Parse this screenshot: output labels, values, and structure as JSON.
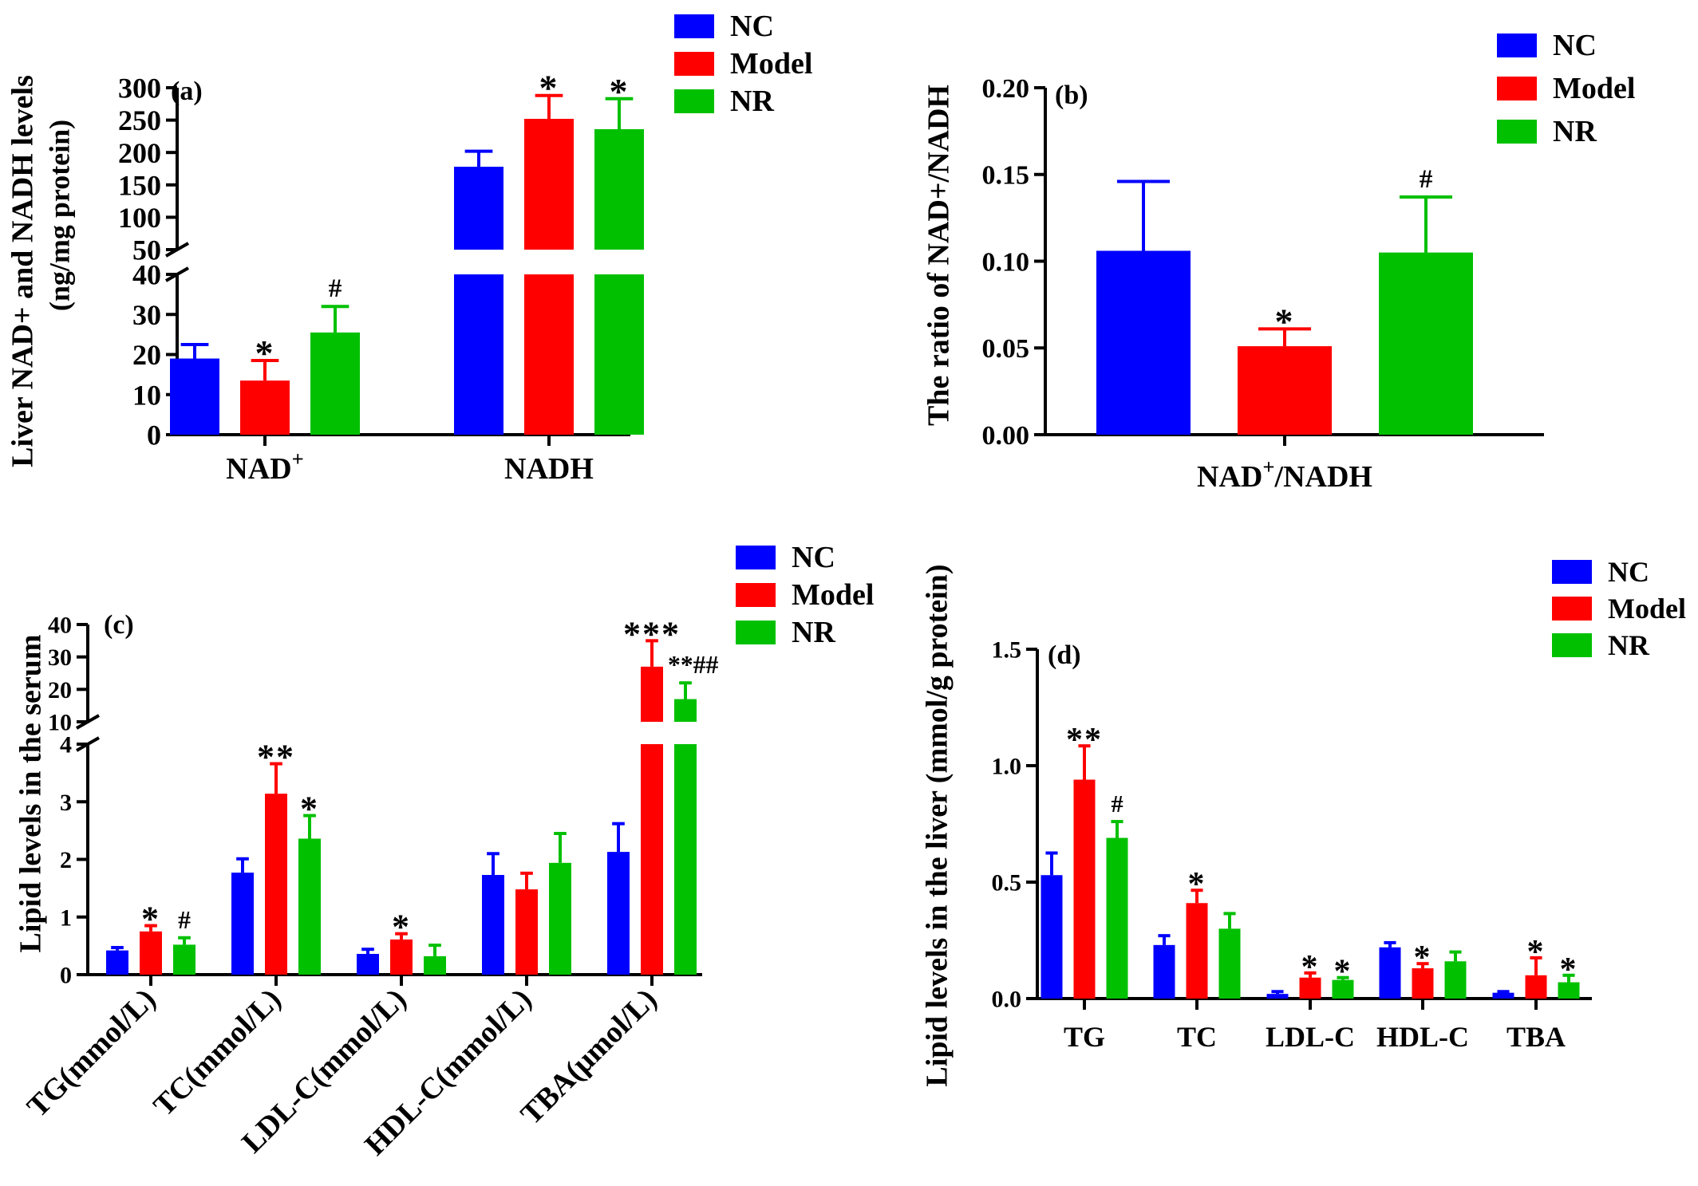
{
  "colors": {
    "NC": "#0000ff",
    "Model": "#ff0000",
    "NR": "#00c000"
  },
  "chart_data": [
    {
      "id": "a",
      "panel_label": "(a)",
      "type": "bar",
      "ylabel": "Liver NAD+ and NADH levels",
      "ylabel2": "(ng/mg protein)",
      "categories": [
        {
          "base": "NAD",
          "sup": "+"
        },
        {
          "base": "NADH",
          "sup": ""
        }
      ],
      "legend": [
        "NC",
        "Model",
        "NR"
      ],
      "axis_break": true,
      "ylim_lower": [
        0,
        40
      ],
      "ylim_upper": [
        50,
        300
      ],
      "yticks_lower": [
        "0",
        "10",
        "20",
        "30",
        "40"
      ],
      "yticks_upper": [
        "50",
        "100",
        "150",
        "200",
        "250",
        "300"
      ],
      "series": [
        {
          "name": "NC",
          "values": [
            19,
            178
          ],
          "errors": [
            3.5,
            24
          ]
        },
        {
          "name": "Model",
          "values": [
            13.5,
            252
          ],
          "errors": [
            5,
            36
          ]
        },
        {
          "name": "NR",
          "values": [
            25.5,
            236
          ],
          "errors": [
            6.5,
            47
          ]
        }
      ],
      "annotations": [
        [
          "",
          ""
        ],
        [
          "*",
          "*"
        ],
        [
          "#",
          "*"
        ]
      ]
    },
    {
      "id": "b",
      "panel_label": "(b)",
      "type": "bar",
      "ylabel": "The ratio of NAD+/NADH",
      "categories": [
        {
          "base": "NAD",
          "sup": "+",
          "after": "/NADH"
        }
      ],
      "legend": [
        "NC",
        "Model",
        "NR"
      ],
      "ylim": [
        0,
        0.2
      ],
      "yticks": [
        "0.00",
        "0.05",
        "0.10",
        "0.15",
        "0.20"
      ],
      "series": [
        {
          "name": "NC",
          "values": [
            0.106
          ],
          "errors": [
            0.04
          ]
        },
        {
          "name": "Model",
          "values": [
            0.051
          ],
          "errors": [
            0.01
          ]
        },
        {
          "name": "NR",
          "values": [
            0.105
          ],
          "errors": [
            0.032
          ]
        }
      ],
      "annotations": [
        [
          ""
        ],
        [
          "*"
        ],
        [
          "#"
        ]
      ]
    },
    {
      "id": "c",
      "panel_label": "(c)",
      "type": "bar",
      "ylabel": "Lipid levels in the serum",
      "categories": [
        "TG(mmol/L)",
        "TC(mmol/L)",
        "LDL-C(mmol/L)",
        "HDL-C(mmol/L)",
        "TBA(μmol/L)"
      ],
      "legend": [
        "NC",
        "Model",
        "NR"
      ],
      "axis_break": true,
      "ylim_lower": [
        0,
        4
      ],
      "ylim_upper": [
        10,
        40
      ],
      "yticks_lower": [
        "0",
        "1",
        "2",
        "3",
        "4"
      ],
      "yticks_upper": [
        "10",
        "20",
        "30",
        "40"
      ],
      "series": [
        {
          "name": "NC",
          "values": [
            0.42,
            1.77,
            0.36,
            1.73,
            2.13
          ],
          "errors": [
            0.05,
            0.24,
            0.08,
            0.37,
            0.49
          ]
        },
        {
          "name": "Model",
          "values": [
            0.75,
            3.14,
            0.61,
            1.48,
            27
          ],
          "errors": [
            0.1,
            0.52,
            0.1,
            0.28,
            8
          ]
        },
        {
          "name": "NR",
          "values": [
            0.52,
            2.36,
            0.32,
            1.94,
            17
          ],
          "errors": [
            0.12,
            0.4,
            0.19,
            0.51,
            5
          ]
        }
      ],
      "annotations": [
        [
          "",
          "",
          "",
          "",
          ""
        ],
        [
          "*",
          "**",
          "*",
          "",
          "***"
        ],
        [
          "#",
          "*",
          "",
          "",
          "**##"
        ]
      ]
    },
    {
      "id": "d",
      "panel_label": "(d)",
      "type": "bar",
      "ylabel": "Lipid levels in the liver (mmol/g protein)",
      "categories": [
        "TG",
        "TC",
        "LDL-C",
        "HDL-C",
        "TBA"
      ],
      "legend": [
        "NC",
        "Model",
        "NR"
      ],
      "ylim": [
        0,
        1.5
      ],
      "yticks": [
        "0.0",
        "0.5",
        "1.0",
        "1.5"
      ],
      "series": [
        {
          "name": "NC",
          "values": [
            0.53,
            0.23,
            0.02,
            0.22,
            0.025
          ],
          "errors": [
            0.095,
            0.04,
            0.01,
            0.02,
            0.005
          ]
        },
        {
          "name": "Model",
          "values": [
            0.94,
            0.41,
            0.09,
            0.13,
            0.1
          ],
          "errors": [
            0.145,
            0.055,
            0.02,
            0.02,
            0.075
          ]
        },
        {
          "name": "NR",
          "values": [
            0.69,
            0.3,
            0.08,
            0.16,
            0.07
          ],
          "errors": [
            0.07,
            0.065,
            0.01,
            0.04,
            0.03
          ]
        }
      ],
      "annotations": [
        [
          "",
          "",
          "",
          "",
          ""
        ],
        [
          "**",
          "*",
          "*",
          "*",
          "*"
        ],
        [
          "#",
          "",
          "*",
          "",
          "*"
        ]
      ]
    }
  ]
}
